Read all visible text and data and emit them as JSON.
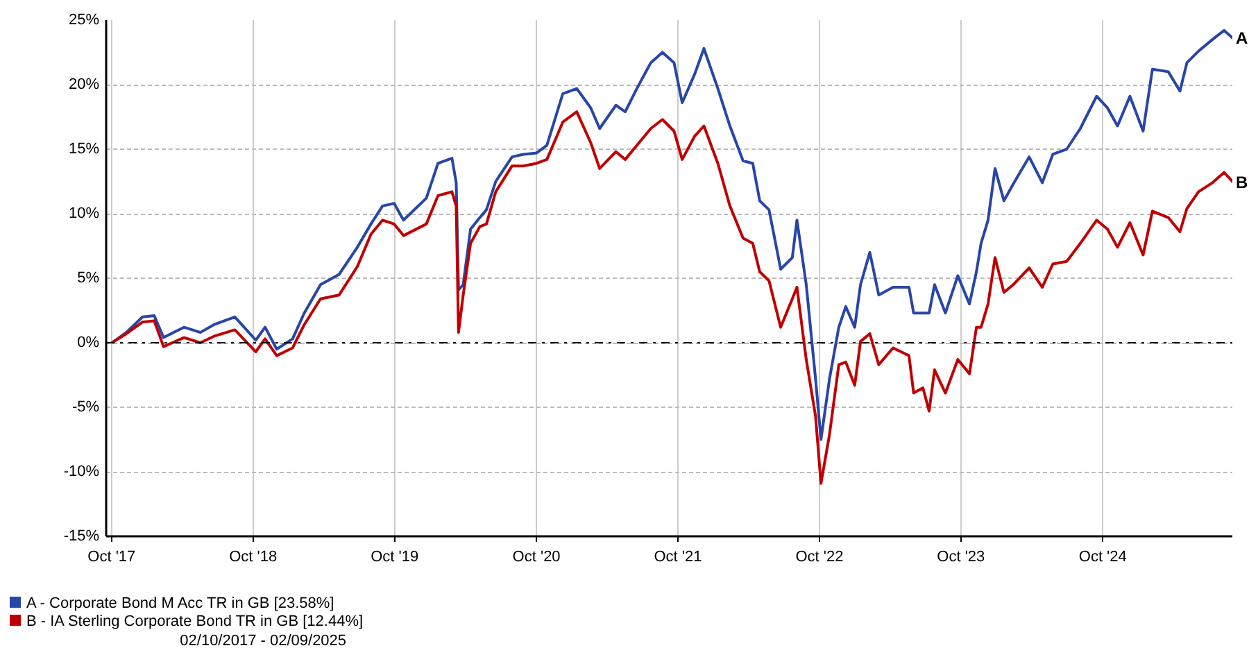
{
  "chart_data": {
    "type": "line",
    "x": [
      "2017-10-02",
      "2017-11-08",
      "2017-12-20",
      "2018-01-19",
      "2018-02-12",
      "2018-04-06",
      "2018-05-18",
      "2018-06-22",
      "2018-08-15",
      "2018-10-08",
      "2018-11-01",
      "2018-12-01",
      "2019-01-11",
      "2019-02-10",
      "2019-03-24",
      "2019-05-11",
      "2019-06-27",
      "2019-08-01",
      "2019-08-31",
      "2019-09-30",
      "2019-10-24",
      "2019-12-22",
      "2020-01-21",
      "2020-02-26",
      "2020-03-08",
      "2020-03-14",
      "2020-03-26",
      "2020-04-14",
      "2020-05-08",
      "2020-05-25",
      "2020-06-18",
      "2020-07-30",
      "2020-08-28",
      "2020-10-01",
      "2020-10-28",
      "2020-12-08",
      "2021-01-13",
      "2021-02-18",
      "2021-03-13",
      "2021-04-24",
      "2021-05-18",
      "2021-06-17",
      "2021-07-23",
      "2021-08-22",
      "2021-09-21",
      "2021-10-12",
      "2021-11-13",
      "2021-12-07",
      "2022-01-12",
      "2022-02-12",
      "2022-03-18",
      "2022-04-12",
      "2022-04-30",
      "2022-05-24",
      "2022-06-23",
      "2022-07-23",
      "2022-08-04",
      "2022-08-28",
      "2022-09-21",
      "2022-10-05",
      "2022-10-27",
      "2022-11-20",
      "2022-12-08",
      "2022-12-31",
      "2023-01-15",
      "2023-02-08",
      "2023-03-03",
      "2023-04-09",
      "2023-05-20",
      "2023-06-01",
      "2023-06-25",
      "2023-07-11",
      "2023-07-25",
      "2023-08-22",
      "2023-09-23",
      "2023-10-23",
      "2023-11-10",
      "2023-11-22",
      "2023-12-10",
      "2023-12-28",
      "2024-01-20",
      "2024-02-13",
      "2024-03-25",
      "2024-04-28",
      "2024-05-25",
      "2024-06-30",
      "2024-08-04",
      "2024-09-15",
      "2024-10-13",
      "2024-11-08",
      "2024-12-10",
      "2025-01-13",
      "2025-02-06",
      "2025-03-19",
      "2025-04-18",
      "2025-05-06",
      "2025-06-05",
      "2025-07-11",
      "2025-08-10",
      "2025-09-02"
    ],
    "series": [
      {
        "name": "A - Corporate Bond M Acc TR in GB [23.58%]",
        "color": "#2846a8",
        "values": [
          0,
          0.8,
          2.0,
          2.1,
          0.4,
          1.2,
          0.8,
          1.4,
          2.0,
          0.2,
          1.2,
          -0.5,
          0.3,
          2.3,
          4.5,
          5.3,
          7.4,
          9.2,
          10.6,
          10.8,
          9.5,
          11.2,
          13.9,
          14.3,
          12.4,
          4.1,
          4.5,
          8.8,
          9.7,
          10.3,
          12.5,
          14.4,
          14.6,
          14.7,
          15.3,
          19.3,
          19.7,
          18.2,
          16.6,
          18.4,
          17.9,
          19.7,
          21.7,
          22.5,
          21.7,
          18.6,
          20.8,
          22.8,
          19.7,
          16.8,
          14.1,
          13.9,
          11.0,
          10.3,
          5.7,
          6.6,
          9.5,
          4.5,
          -2.8,
          -7.5,
          -2.8,
          1.2,
          2.8,
          1.2,
          4.5,
          7.0,
          3.7,
          4.3,
          4.3,
          2.3,
          2.3,
          2.3,
          4.5,
          2.3,
          5.2,
          3.0,
          5.5,
          7.7,
          9.5,
          13.5,
          11.0,
          12.3,
          14.4,
          12.4,
          14.6,
          15.0,
          16.6,
          19.1,
          18.2,
          16.8,
          19.1,
          16.4,
          21.2,
          21.0,
          19.5,
          21.7,
          22.6,
          23.5,
          24.2,
          23.58
        ]
      },
      {
        "name": "B - IA Sterling Corporate Bond TR in GB [12.44%]",
        "color": "#c00000",
        "values": [
          0,
          0.7,
          1.6,
          1.7,
          -0.3,
          0.4,
          0,
          0.5,
          1.0,
          -0.7,
          0.3,
          -1.0,
          -0.4,
          1.4,
          3.4,
          3.7,
          5.9,
          8.4,
          9.5,
          9.2,
          8.3,
          9.2,
          11.4,
          11.7,
          10.6,
          0.8,
          3.7,
          7.7,
          9.0,
          9.2,
          11.7,
          13.7,
          13.7,
          13.9,
          14.2,
          17.1,
          17.9,
          15.5,
          13.5,
          14.8,
          14.2,
          15.3,
          16.6,
          17.3,
          16.4,
          14.2,
          16.0,
          16.8,
          13.9,
          10.6,
          8.1,
          7.7,
          5.5,
          4.8,
          1.2,
          3.4,
          4.3,
          -1.3,
          -5.7,
          -10.9,
          -7.1,
          -1.7,
          -1.5,
          -3.3,
          0.1,
          0.7,
          -1.7,
          -0.4,
          -1.0,
          -3.9,
          -3.5,
          -5.3,
          -2.1,
          -3.9,
          -1.3,
          -2.4,
          1.2,
          1.2,
          3.0,
          6.6,
          3.9,
          4.5,
          5.8,
          4.3,
          6.1,
          6.3,
          7.7,
          9.5,
          8.8,
          7.4,
          9.3,
          6.8,
          10.2,
          9.7,
          8.6,
          10.4,
          11.7,
          12.4,
          13.2,
          12.44
        ]
      }
    ],
    "xlim": [
      "2017-09-17",
      "2025-09-02"
    ],
    "xticks": [
      {
        "value": "2017-10-01",
        "label": "Oct '17"
      },
      {
        "value": "2018-10-01",
        "label": "Oct '18"
      },
      {
        "value": "2019-10-01",
        "label": "Oct '19"
      },
      {
        "value": "2020-10-01",
        "label": "Oct '20"
      },
      {
        "value": "2021-10-01",
        "label": "Oct '21"
      },
      {
        "value": "2022-10-01",
        "label": "Oct '22"
      },
      {
        "value": "2023-10-01",
        "label": "Oct '23"
      },
      {
        "value": "2024-10-01",
        "label": "Oct '24"
      }
    ],
    "ylim": [
      -15,
      25
    ],
    "yticks": [
      {
        "value": -15,
        "label": "-15%"
      },
      {
        "value": -10,
        "label": "-10%"
      },
      {
        "value": -5,
        "label": "-5%"
      },
      {
        "value": 0,
        "label": "0%"
      },
      {
        "value": 5,
        "label": "5%"
      },
      {
        "value": 10,
        "label": "10%"
      },
      {
        "value": 15,
        "label": "15%"
      },
      {
        "value": 20,
        "label": "20%"
      },
      {
        "value": 25,
        "label": "25%"
      }
    ],
    "ref_lines": [
      {
        "axis": "y",
        "value": 0,
        "color": "#000000",
        "line_style": "dashdot"
      }
    ],
    "annotations": [
      {
        "text": "A",
        "x": "2025-09-02",
        "y": 23.58
      },
      {
        "text": "B",
        "x": "2025-09-02",
        "y": 12.44
      },
      "02/10/2017 - 02/09/2025"
    ],
    "grid": true,
    "legend": "bottom left",
    "marker": "none",
    "line_style": "solid"
  }
}
